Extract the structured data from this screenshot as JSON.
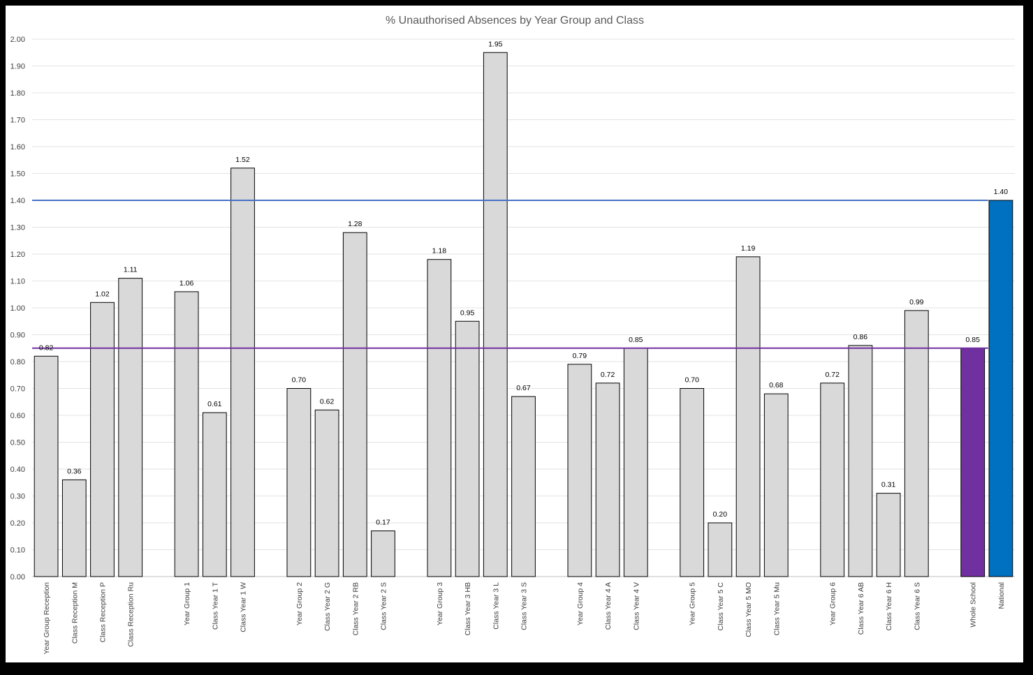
{
  "chart_data": {
    "type": "bar",
    "title": "% Unauthorised Absences by Year Group and Class",
    "xlabel": "",
    "ylabel": "",
    "ylim": [
      0,
      2.0
    ],
    "ystep": 0.1,
    "grid": true,
    "legend": "none",
    "categories": [
      "Year Group Reception",
      "Class Reception M",
      "Class Reception P",
      "Class Reception Ru",
      "",
      "Year Group 1",
      "Class Year 1 T",
      "Class Year 1 W",
      "",
      "Year Group 2",
      "Class Year 2 G",
      "Class Year 2 RB",
      "Class Year 2 S",
      "",
      "Year Group 3",
      "Class Year 3 HB",
      "Class Year 3 L",
      "Class Year 3 S",
      "",
      "Year Group 4",
      "Class Year 4 A",
      "Class Year 4 V",
      "",
      "Year Group 5",
      "Class Year 5 C",
      "Class Year 5 MO",
      "Class Year 5 Mu",
      "",
      "Year Group 6",
      "Class Year 6 AB",
      "Class Year 6 H",
      "Class Year 6 S",
      "",
      "Whole School",
      "National"
    ],
    "values": [
      0.82,
      0.36,
      1.02,
      1.11,
      null,
      1.06,
      0.61,
      1.52,
      null,
      0.7,
      0.62,
      1.28,
      0.17,
      null,
      1.18,
      0.95,
      1.95,
      0.67,
      null,
      0.79,
      0.72,
      0.85,
      null,
      0.7,
      0.2,
      1.19,
      0.68,
      null,
      0.72,
      0.86,
      0.31,
      0.99,
      null,
      0.85,
      1.4
    ],
    "bar_colors": {
      "default": "#d9d9d9",
      "Whole School": "#7030a0",
      "National": "#0070c0"
    },
    "reference_lines": [
      {
        "value": 1.4,
        "color": "#4472c4"
      },
      {
        "value": 0.85,
        "color": "#7030a0"
      }
    ]
  }
}
